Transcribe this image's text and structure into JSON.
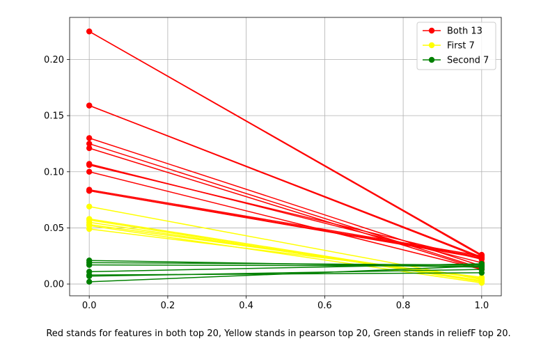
{
  "chart_data": {
    "type": "line",
    "x": [
      0,
      1
    ],
    "xlim": [
      -0.05,
      1.05
    ],
    "ylim": [
      -0.0105,
      0.2375
    ],
    "xticks": [
      "0.0",
      "0.2",
      "0.4",
      "0.6",
      "0.8",
      "1.0"
    ],
    "yticks": [
      "0.00",
      "0.05",
      "0.10",
      "0.15",
      "0.20"
    ],
    "grid": true,
    "legend_position": "top-right",
    "legend": [
      {
        "label": "Both 13",
        "color": "#ff0000"
      },
      {
        "label": "First 7",
        "color": "#ffff00"
      },
      {
        "label": "Second 7",
        "color": "#008000"
      }
    ],
    "groups": [
      {
        "legend_index": 0,
        "color": "#ff0000",
        "lines": [
          [
            0.225,
            0.025
          ],
          [
            0.225,
            0.026
          ],
          [
            0.159,
            0.024
          ],
          [
            0.159,
            0.023
          ],
          [
            0.13,
            0.016
          ],
          [
            0.125,
            0.014
          ],
          [
            0.121,
            0.013
          ],
          [
            0.107,
            0.019
          ],
          [
            0.106,
            0.022
          ],
          [
            0.1,
            0.013
          ],
          [
            0.084,
            0.025
          ],
          [
            0.083,
            0.023
          ],
          [
            0.083,
            0.024
          ]
        ]
      },
      {
        "legend_index": 1,
        "color": "#ffff00",
        "lines": [
          [
            0.069,
            0.004
          ],
          [
            0.058,
            0.003
          ],
          [
            0.057,
            0.002
          ],
          [
            0.055,
            0.003
          ],
          [
            0.053,
            0.005
          ],
          [
            0.052,
            0.001
          ],
          [
            0.049,
            0.006
          ]
        ]
      },
      {
        "legend_index": 2,
        "color": "#008000",
        "lines": [
          [
            0.021,
            0.015
          ],
          [
            0.019,
            0.017
          ],
          [
            0.017,
            0.016
          ],
          [
            0.011,
            0.018
          ],
          [
            0.008,
            0.01
          ],
          [
            0.007,
            0.013
          ],
          [
            0.002,
            0.016
          ]
        ]
      }
    ]
  },
  "caption": "Red stands for features in both top 20, Yellow stands in pearson top 20, Green stands in reliefF top 20."
}
